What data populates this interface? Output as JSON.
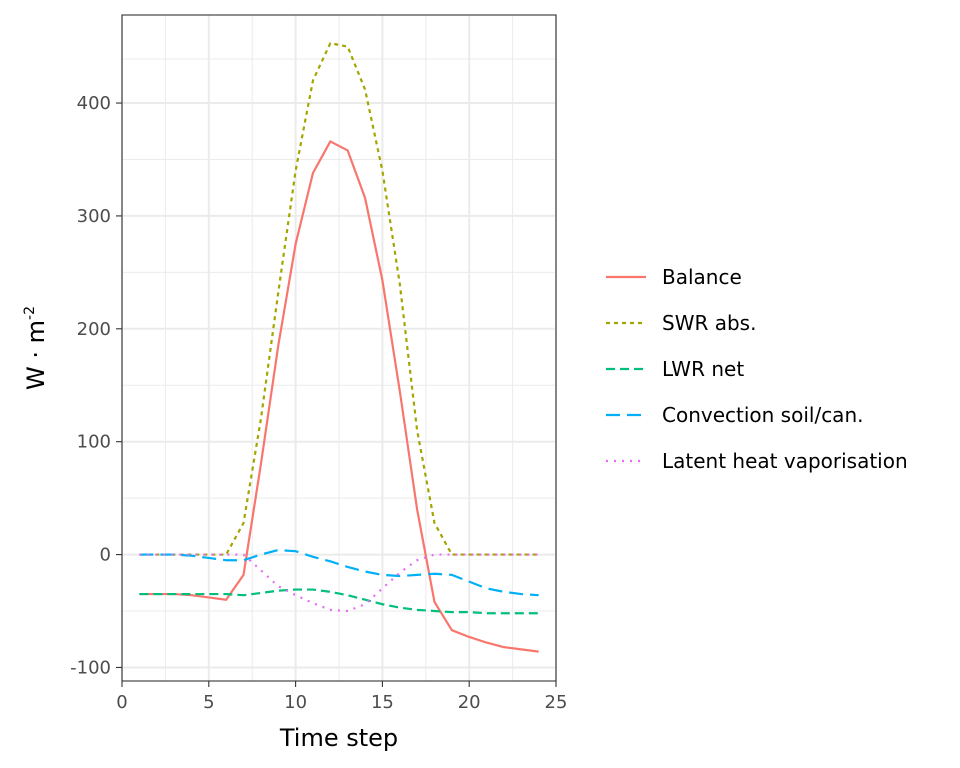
{
  "chart_data": {
    "type": "line",
    "xlabel": "Time step",
    "ylabel": "W · m",
    "ylabel_superscript": "-2",
    "xlim": [
      0,
      25
    ],
    "ylim": [
      -112,
      478
    ],
    "xticks": [
      0,
      5,
      10,
      15,
      20,
      25
    ],
    "xtick_labels": [
      "0",
      "5",
      "10",
      "15",
      "20",
      "25"
    ],
    "yticks": [
      -100,
      0,
      100,
      200,
      300,
      400
    ],
    "ytick_labels": [
      "-100",
      "0",
      "100",
      "200",
      "300",
      "400"
    ],
    "grid": true,
    "legend_position": "right",
    "x": [
      1,
      2,
      3,
      4,
      5,
      6,
      7,
      8,
      9,
      10,
      11,
      12,
      13,
      14,
      15,
      16,
      17,
      18,
      19,
      20,
      21,
      22,
      23,
      24
    ],
    "series": [
      {
        "name": "Balance",
        "color": "#F8766D",
        "dash": "solid",
        "values": [
          -35,
          -35,
          -35,
          -36,
          -38,
          -40,
          -18,
          80,
          185,
          275,
          338,
          366,
          358,
          316,
          243,
          145,
          40,
          -42,
          -67,
          -73,
          -78,
          -82,
          -84,
          -86
        ]
      },
      {
        "name": "SWR abs.",
        "color": "#A3A500",
        "dash": "dotted-dash",
        "values": [
          0,
          0,
          0,
          0,
          0,
          0,
          28,
          120,
          232,
          340,
          420,
          453,
          450,
          412,
          340,
          240,
          110,
          28,
          0,
          0,
          0,
          0,
          0,
          0
        ]
      },
      {
        "name": "LWR net",
        "color": "#00BF7D",
        "dash": "dashed",
        "values": [
          -35,
          -35,
          -35,
          -35,
          -35,
          -35,
          -36,
          -34,
          -32,
          -31,
          -31,
          -33,
          -36,
          -40,
          -44,
          -47,
          -49,
          -50,
          -51,
          -51,
          -52,
          -52,
          -52,
          -52
        ]
      },
      {
        "name": "Convection soil/can.",
        "color": "#00B0F6",
        "dash": "longdash",
        "values": [
          0,
          0,
          0,
          -1,
          -3,
          -5,
          -5,
          0,
          4,
          3,
          -2,
          -6,
          -11,
          -15,
          -18,
          -19,
          -18,
          -17,
          -18,
          -24,
          -30,
          -33,
          -35,
          -36
        ]
      },
      {
        "name": "Latent heat vaporisation",
        "color": "#E76BF3",
        "dash": "dotted",
        "values": [
          0,
          0,
          0,
          0,
          0,
          0,
          0,
          -14,
          -28,
          -36,
          -43,
          -49,
          -50,
          -44,
          -30,
          -16,
          -5,
          0,
          0,
          0,
          0,
          0,
          0,
          0
        ]
      }
    ]
  }
}
